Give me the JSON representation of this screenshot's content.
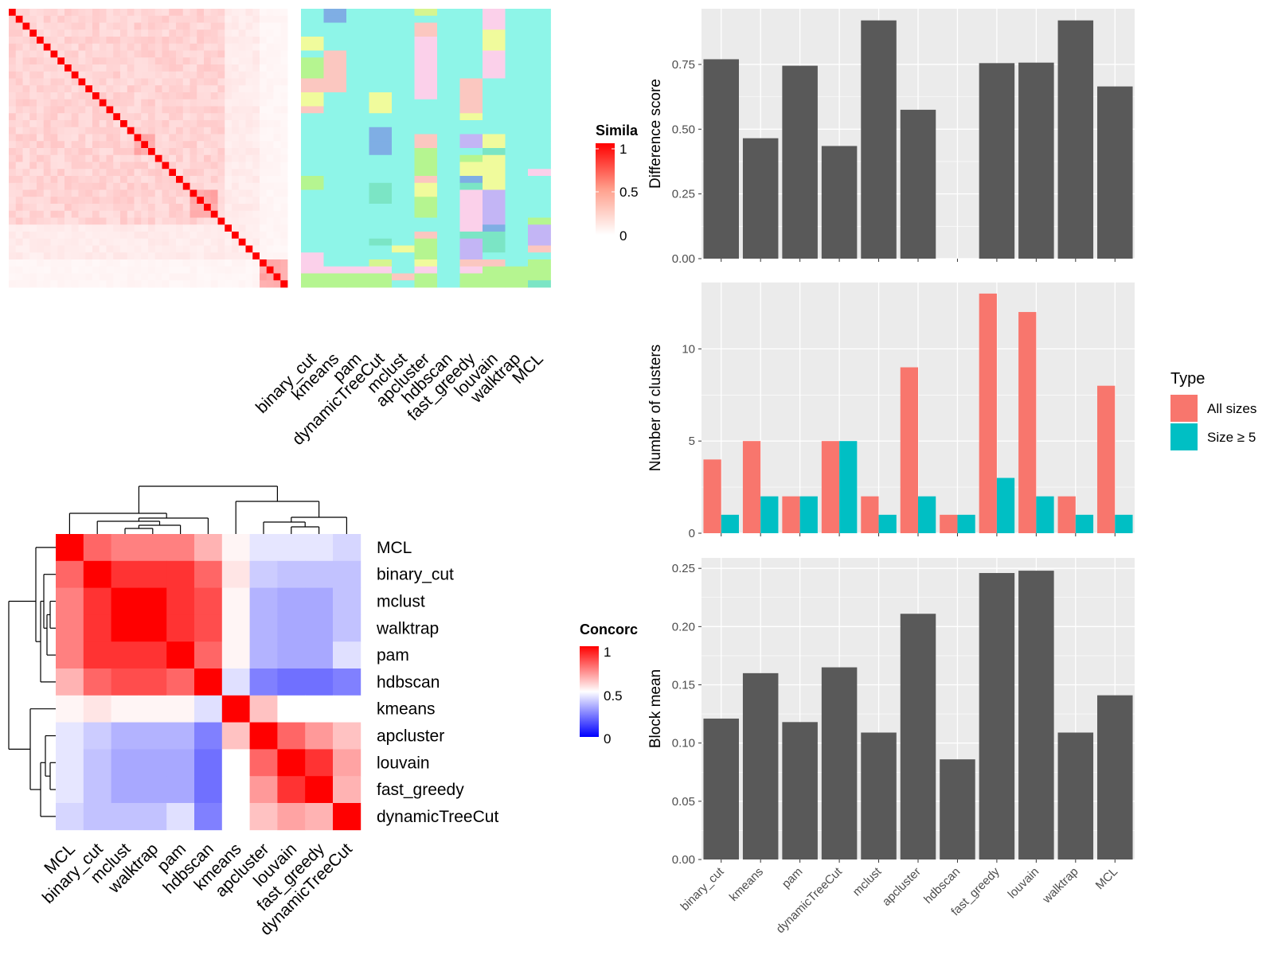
{
  "figure": {
    "similarity_legend_title": "Simila",
    "similarity_legend_ticks": [
      "1",
      "0.5",
      "0"
    ],
    "concordance_legend_title": "Concorc",
    "concordance_legend_ticks": [
      "1",
      "0.5",
      "0"
    ],
    "type_legend_title": "Type",
    "type_legend_items": [
      "All sizes",
      "Size ≥ 5"
    ]
  },
  "colors": {
    "panel_bg": "#ebebeb",
    "grid": "#ffffff",
    "bar_dark": "#595959",
    "all_sizes": "#f8766d",
    "size_ge5": "#00bfc4",
    "heat_red": "#ff0000",
    "heat_blue": "#0000ff"
  },
  "chart_data": [
    {
      "id": "similarity_heatmap",
      "type": "heatmap",
      "n": 40,
      "diagonal": 1,
      "scale": [
        0,
        1
      ],
      "legend_title": "Simila"
    },
    {
      "id": "cluster_assignment_heatmap",
      "type": "heatmap",
      "methods": [
        "binary_cut",
        "kmeans",
        "pam",
        "dynamicTreeCut",
        "mclust",
        "apcluster",
        "hdbscan",
        "fast_greedy",
        "louvain",
        "walktrap",
        "MCL"
      ]
    },
    {
      "id": "concordance_heatmap",
      "type": "heatmap",
      "legend_title": "Concorc",
      "scale": [
        0,
        1
      ],
      "order": [
        "MCL",
        "binary_cut",
        "mclust",
        "walktrap",
        "pam",
        "hdbscan",
        "kmeans",
        "apcluster",
        "louvain",
        "fast_greedy",
        "dynamicTreeCut"
      ],
      "values": [
        [
          1.0,
          0.8,
          0.75,
          0.75,
          0.75,
          0.65,
          0.52,
          0.45,
          0.45,
          0.45,
          0.42
        ],
        [
          0.8,
          1.0,
          0.9,
          0.9,
          0.9,
          0.8,
          0.55,
          0.4,
          0.38,
          0.38,
          0.38
        ],
        [
          0.75,
          0.9,
          1.0,
          1.0,
          0.9,
          0.85,
          0.52,
          0.35,
          0.33,
          0.33,
          0.38
        ],
        [
          0.75,
          0.9,
          1.0,
          1.0,
          0.9,
          0.85,
          0.52,
          0.35,
          0.33,
          0.33,
          0.38
        ],
        [
          0.75,
          0.9,
          0.9,
          0.9,
          1.0,
          0.8,
          0.52,
          0.35,
          0.33,
          0.33,
          0.44
        ],
        [
          0.65,
          0.8,
          0.85,
          0.85,
          0.8,
          1.0,
          0.44,
          0.25,
          0.22,
          0.22,
          0.25
        ],
        [
          0.52,
          0.55,
          0.52,
          0.52,
          0.52,
          0.44,
          1.0,
          0.62,
          0.5,
          0.5,
          0.5
        ],
        [
          0.45,
          0.4,
          0.35,
          0.35,
          0.35,
          0.25,
          0.62,
          1.0,
          0.8,
          0.7,
          0.62
        ],
        [
          0.45,
          0.38,
          0.33,
          0.33,
          0.33,
          0.22,
          0.5,
          0.8,
          1.0,
          0.9,
          0.68
        ],
        [
          0.45,
          0.38,
          0.33,
          0.33,
          0.33,
          0.22,
          0.5,
          0.7,
          0.9,
          1.0,
          0.65
        ],
        [
          0.42,
          0.38,
          0.38,
          0.38,
          0.44,
          0.25,
          0.5,
          0.62,
          0.68,
          0.65,
          1.0
        ]
      ]
    },
    {
      "id": "difference_score",
      "type": "bar",
      "categories": [
        "binary_cut",
        "kmeans",
        "pam",
        "dynamicTreeCut",
        "mclust",
        "apcluster",
        "hdbscan",
        "fast_greedy",
        "louvain",
        "walktrap",
        "MCL"
      ],
      "values": [
        0.77,
        0.465,
        0.745,
        0.435,
        0.92,
        0.575,
        null,
        0.755,
        0.757,
        0.92,
        0.665
      ],
      "ylabel": "Difference score",
      "yticks": [
        "0.00",
        "0.25",
        "0.50",
        "0.75"
      ],
      "ylim": [
        0,
        0.965
      ]
    },
    {
      "id": "number_of_clusters",
      "type": "bar",
      "categories": [
        "binary_cut",
        "kmeans",
        "pam",
        "dynamicTreeCut",
        "mclust",
        "apcluster",
        "hdbscan",
        "fast_greedy",
        "louvain",
        "walktrap",
        "MCL"
      ],
      "series": [
        {
          "name": "All sizes",
          "values": [
            4,
            5,
            2,
            5,
            2,
            9,
            1,
            13,
            12,
            2,
            8
          ]
        },
        {
          "name": "Size ≥ 5",
          "values": [
            1,
            2,
            2,
            5,
            1,
            2,
            1,
            3,
            2,
            1,
            1
          ]
        }
      ],
      "ylabel": "Number of clusters",
      "yticks": [
        "0",
        "5",
        "10"
      ],
      "ylim": [
        0,
        13.6
      ],
      "legend": "right"
    },
    {
      "id": "block_mean",
      "type": "bar",
      "categories": [
        "binary_cut",
        "kmeans",
        "pam",
        "dynamicTreeCut",
        "mclust",
        "apcluster",
        "hdbscan",
        "fast_greedy",
        "louvain",
        "walktrap",
        "MCL"
      ],
      "values": [
        0.121,
        0.16,
        0.118,
        0.165,
        0.109,
        0.211,
        0.086,
        0.246,
        0.248,
        0.109,
        0.141
      ],
      "ylabel": "Block mean",
      "yticks": [
        "0.00",
        "0.05",
        "0.10",
        "0.15",
        "0.20",
        "0.25"
      ],
      "ylim": [
        0,
        0.259
      ]
    }
  ]
}
